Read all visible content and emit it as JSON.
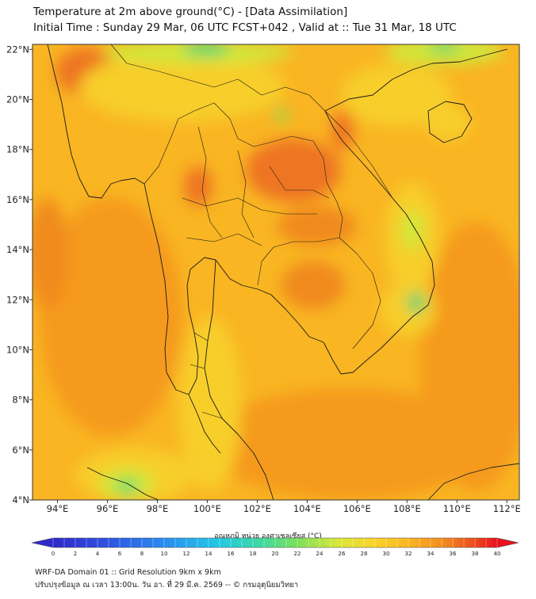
{
  "header": {
    "title": "Temperature at 2m above ground(°C) - [Data Assimilation]",
    "subtitle": "Initial Time : Sunday 29 Mar, 06 UTC FCST+042 , Valid at :: Tue 31 Mar, 18 UTC"
  },
  "map": {
    "lat_labels": [
      "22°N",
      "20°N",
      "18°N",
      "16°N",
      "14°N",
      "12°N",
      "10°N",
      "8°N",
      "6°N",
      "4°N"
    ],
    "lon_labels": [
      "94°E",
      "96°E",
      "98°E",
      "100°E",
      "102°E",
      "104°E",
      "106°E",
      "108°E",
      "110°E",
      "112°E"
    ],
    "lon_range": [
      93,
      112.5
    ],
    "lat_range": [
      4,
      22.2
    ],
    "colors": {
      "base": "#f9b522",
      "warm": "#f59a1c",
      "hot": "#ee7522",
      "mild": "#f7ce2c",
      "cool": "#cfe83a",
      "cold": "#3fd474",
      "border": "#1a1a1a"
    }
  },
  "colorbar": {
    "title": "อุณหภูมิ หน่วย องศาเซลเซียส (°C)",
    "min": 0,
    "max": 40,
    "tick_labels": [
      "0",
      "2",
      "4",
      "6",
      "8",
      "10",
      "12",
      "14",
      "16",
      "18",
      "20",
      "22",
      "24",
      "26",
      "28",
      "30",
      "32",
      "34",
      "36",
      "38",
      "40"
    ]
  },
  "footer": {
    "line1": "WRF-DA Domain 01 :: Grid Resolution 9km x 9km",
    "line2": "ปรับปรุงข้อมูล ณ เวลา 13:00น. วัน อา. ที่ 29 มี.ค. 2569 -- © กรมอุตุนิยมวิทยา"
  }
}
